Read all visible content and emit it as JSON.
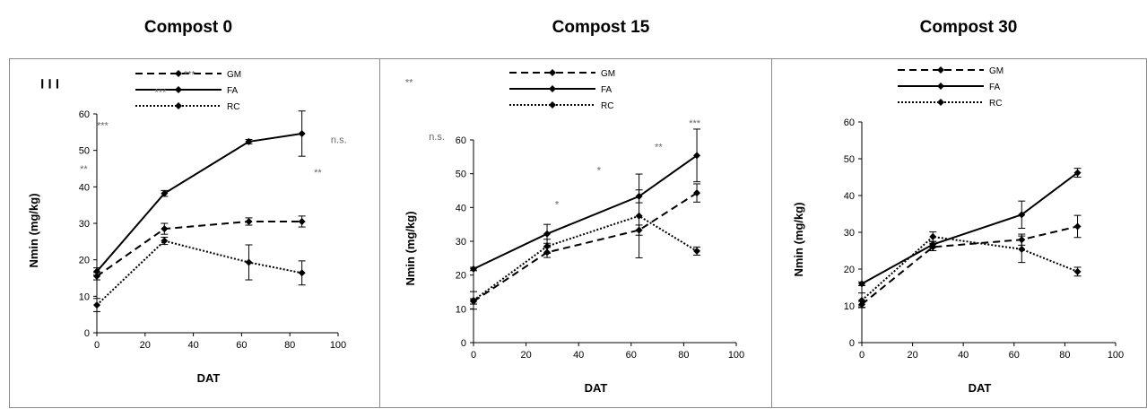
{
  "chart_data": [
    {
      "type": "line",
      "title": "Compost 0",
      "xlabel": "DAT",
      "ylabel": "Nmin (mg/kg)",
      "xlim": [
        0,
        100
      ],
      "ylim": [
        0,
        60
      ],
      "xticks": [
        "0",
        "20",
        "40",
        "60",
        "80",
        "100"
      ],
      "yticks": [
        "0",
        "10",
        "20",
        "30",
        "40",
        "50",
        "60"
      ],
      "series": [
        {
          "name": "GM",
          "style": "dashed",
          "x": [
            0,
            28,
            63,
            85
          ],
          "y": [
            15.5,
            28.5,
            30.5,
            30.5
          ],
          "err": [
            1.0,
            1.5,
            1.0,
            1.5
          ]
        },
        {
          "name": "FA",
          "style": "solid",
          "x": [
            0,
            28,
            63,
            85
          ],
          "y": [
            16.8,
            38.2,
            52.4,
            54.6
          ],
          "err": [
            1.0,
            0.8,
            0.6,
            6.2
          ]
        },
        {
          "name": "RC",
          "style": "dotted",
          "x": [
            0,
            28,
            63,
            85
          ],
          "y": [
            7.6,
            25.2,
            19.3,
            16.4
          ],
          "err": [
            1.8,
            1.0,
            4.8,
            3.3
          ]
        }
      ],
      "annotations": [
        {
          "text": "***",
          "x": 0,
          "y": 56,
          "dx": 0,
          "dy": 0
        },
        {
          "text": "**",
          "x": -7,
          "y": 44,
          "dx": 0,
          "dy": 0
        },
        {
          "text": "***",
          "x": 24,
          "y": 65,
          "dx": 0,
          "dy": 0
        },
        {
          "text": "n.s.",
          "x": 97,
          "y": 52,
          "dx": 0,
          "dy": 0
        },
        {
          "text": "**",
          "x": 90,
          "y": 43,
          "dx": 0,
          "dy": 0
        },
        {
          "text": "***",
          "x": 36,
          "y": 70,
          "dx": 0,
          "dy": 0
        }
      ]
    },
    {
      "type": "line",
      "title": "Compost 15",
      "xlabel": "DAT",
      "ylabel": "Nmin (mg/kg)",
      "xlim": [
        0,
        100
      ],
      "ylim": [
        0,
        60
      ],
      "xticks": [
        "0",
        "20",
        "40",
        "60",
        "80",
        "100"
      ],
      "yticks": [
        "0",
        "10",
        "20",
        "30",
        "40",
        "50",
        "60"
      ],
      "series": [
        {
          "name": "GM",
          "style": "dashed",
          "x": [
            0,
            28,
            63,
            85
          ],
          "y": [
            12.2,
            26.7,
            33.3,
            44.3
          ],
          "err": [
            0.8,
            1.5,
            1.5,
            2.7
          ]
        },
        {
          "name": "FA",
          "style": "solid",
          "x": [
            0,
            28,
            63,
            85
          ],
          "y": [
            21.8,
            32.2,
            43.3,
            55.4
          ],
          "err": [
            0.5,
            2.8,
            1.9,
            7.8
          ]
        },
        {
          "name": "RC",
          "style": "dotted",
          "x": [
            0,
            28,
            63,
            85
          ],
          "y": [
            12.5,
            28.5,
            37.5,
            27.1
          ],
          "err": [
            2.6,
            2.1,
            12.4,
            1.2
          ]
        }
      ],
      "annotations": [
        {
          "text": "n.s.",
          "x": -17,
          "y": 60,
          "dx": 0,
          "dy": 0
        },
        {
          "text": "**",
          "x": -26,
          "y": 76,
          "dx": 0,
          "dy": 0
        },
        {
          "text": "*",
          "x": 31,
          "y": 40,
          "dx": 0,
          "dy": 0
        },
        {
          "text": "*",
          "x": 47,
          "y": 50,
          "dx": 0,
          "dy": 0
        },
        {
          "text": "**",
          "x": 69,
          "y": 57,
          "dx": 0,
          "dy": 0
        },
        {
          "text": "***",
          "x": 82,
          "y": 64,
          "dx": 0,
          "dy": 0
        }
      ]
    },
    {
      "type": "line",
      "title": "Compost 30",
      "xlabel": "DAT",
      "ylabel": "Nmin (mg/kg)",
      "xlim": [
        0,
        100
      ],
      "ylim": [
        0,
        60
      ],
      "xticks": [
        "0",
        "20",
        "40",
        "60",
        "80",
        "100"
      ],
      "yticks": [
        "0",
        "10",
        "20",
        "30",
        "40",
        "50",
        "60"
      ],
      "series": [
        {
          "name": "GM",
          "style": "dashed",
          "x": [
            0,
            28,
            63,
            85
          ],
          "y": [
            10.4,
            26.0,
            28.0,
            31.6
          ],
          "err": [
            0.8,
            1.0,
            1.5,
            3.0
          ]
        },
        {
          "name": "FA",
          "style": "solid",
          "x": [
            0,
            28,
            63,
            85
          ],
          "y": [
            16.0,
            26.7,
            34.8,
            46.2
          ],
          "err": [
            0.5,
            0.8,
            3.7,
            1.2
          ]
        },
        {
          "name": "RC",
          "style": "dotted",
          "x": [
            0,
            28,
            63,
            85
          ],
          "y": [
            11.5,
            28.8,
            25.4,
            19.3
          ],
          "err": [
            2.0,
            1.3,
            3.6,
            1.2
          ]
        }
      ],
      "annotations": []
    }
  ],
  "legend_labels": [
    "GM",
    "FA",
    "RC"
  ],
  "legend_marker_text": "❙❙❙"
}
